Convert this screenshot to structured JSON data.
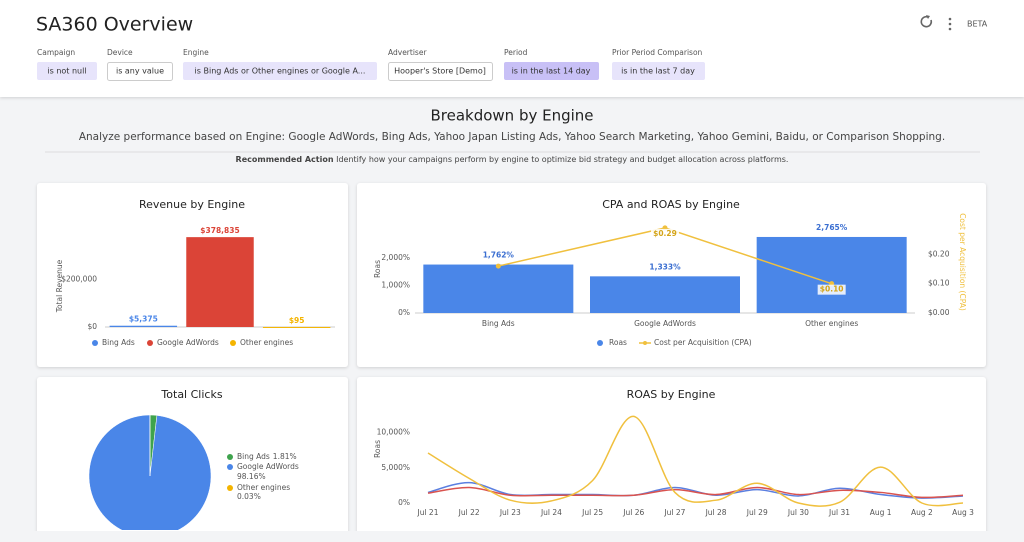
{
  "header": {
    "title": "SA360 Overview",
    "badge": "BETA"
  },
  "filters": [
    {
      "label": "Campaign",
      "value": "is not null"
    },
    {
      "label": "Device",
      "value": "is any value"
    },
    {
      "label": "Engine",
      "value": "is Bing Ads or Other engines or Google A..."
    },
    {
      "label": "Advertiser",
      "value": "Hooper's Store [Demo]"
    },
    {
      "label": "Period",
      "value": "is in the last 14 day"
    },
    {
      "label": "Prior Period Comparison",
      "value": "is in the last 7 day"
    }
  ],
  "section": {
    "title": "Breakdown by Engine",
    "subtitle": "Analyze performance based on Engine: Google AdWords, Bing Ads, Yahoo Japan Listing Ads, Yahoo Search Marketing, Yahoo Gemini, Baidu, or Comparison Shopping.",
    "action_label": "Recommended Action",
    "action_text": "Identify how your campaigns perform by engine to optimize bid strategy and budget allocation across platforms."
  },
  "chart_data": [
    {
      "type": "bar",
      "title": "Revenue by Engine",
      "y_label": "Total Revenue",
      "categories": [
        "Bing Ads",
        "Google AdWords",
        "Other engines"
      ],
      "values": [
        5375,
        378835,
        95
      ],
      "value_labels": [
        "$5,375",
        "$378,835",
        "$95"
      ],
      "colors": [
        "#4a86e8",
        "#db4437",
        "#f4b400"
      ],
      "ylim": [
        0,
        430000
      ],
      "yticks": [
        {
          "value": 0,
          "label": "$0"
        },
        {
          "value": 200000,
          "label": "$200,000"
        }
      ],
      "legend": "bottom"
    },
    {
      "type": "combo",
      "title": "CPA and ROAS by Engine",
      "y_label": "Roas",
      "y2_label": "Cost per Acquisition (CPA)",
      "categories": [
        "Bing Ads",
        "Google AdWords",
        "Other engines"
      ],
      "series": [
        {
          "name": "Roas",
          "type": "bar",
          "color": "#4a86e8",
          "values": [
            1762,
            1333,
            2765
          ],
          "value_labels": [
            "1,762%",
            "1,333%",
            "2,765%"
          ]
        },
        {
          "name": "Cost per Acquisition (CPA)",
          "type": "line",
          "axis": "y2",
          "color": "#f0c03e",
          "values": [
            0.16,
            0.29,
            0.1
          ],
          "value_labels": [
            null,
            "$0.29",
            "$0.10"
          ]
        }
      ],
      "ylim": [
        0,
        3200
      ],
      "yticks": [
        {
          "value": 0,
          "label": "0%"
        },
        {
          "value": 1000,
          "label": "1,000%"
        },
        {
          "value": 2000,
          "label": "2,000%"
        }
      ],
      "y2lim": [
        0,
        0.3
      ],
      "y2ticks": [
        {
          "value": 0,
          "label": "$0.00"
        },
        {
          "value": 0.1,
          "label": "$0.10"
        },
        {
          "value": 0.2,
          "label": "$0.20"
        }
      ],
      "legend": "bottom"
    },
    {
      "type": "pie",
      "title": "Total Clicks",
      "categories": [
        "Bing Ads",
        "Google AdWords",
        "Other engines"
      ],
      "values": [
        1.81,
        98.16,
        0.03
      ],
      "value_labels": [
        "1.81%",
        "98.16%",
        "0.03%"
      ],
      "colors": [
        "#3fa34d",
        "#4a86e8",
        "#f4b400"
      ],
      "legend": "right"
    },
    {
      "type": "line",
      "title": "ROAS by Engine",
      "y_label": "Roas",
      "categories": [
        "Jul 21",
        "Jul 22",
        "Jul 23",
        "Jul 24",
        "Jul 25",
        "Jul 26",
        "Jul 27",
        "Jul 28",
        "Jul 29",
        "Jul 30",
        "Jul 31",
        "Aug 1",
        "Aug 2",
        "Aug 3"
      ],
      "series": [
        {
          "color": "#5b7fe0",
          "values": [
            1500,
            2900,
            1200,
            1200,
            1200,
            1100,
            2200,
            1100,
            1900,
            1000,
            2100,
            1200,
            700,
            1000
          ]
        },
        {
          "color": "#d9534f",
          "values": [
            1400,
            2200,
            1100,
            1100,
            1100,
            1100,
            1900,
            1200,
            2200,
            1200,
            1800,
            1500,
            800,
            1100
          ]
        },
        {
          "color": "#f0c03e",
          "values": [
            7100,
            3500,
            400,
            300,
            3200,
            12300,
            1500,
            400,
            2800,
            0,
            100,
            5100,
            0,
            0
          ]
        }
      ],
      "ylim": [
        0,
        12500
      ],
      "yticks": [
        {
          "value": 0,
          "label": "0%"
        },
        {
          "value": 5000,
          "label": "5,000%"
        },
        {
          "value": 10000,
          "label": "10,000%"
        }
      ]
    }
  ]
}
